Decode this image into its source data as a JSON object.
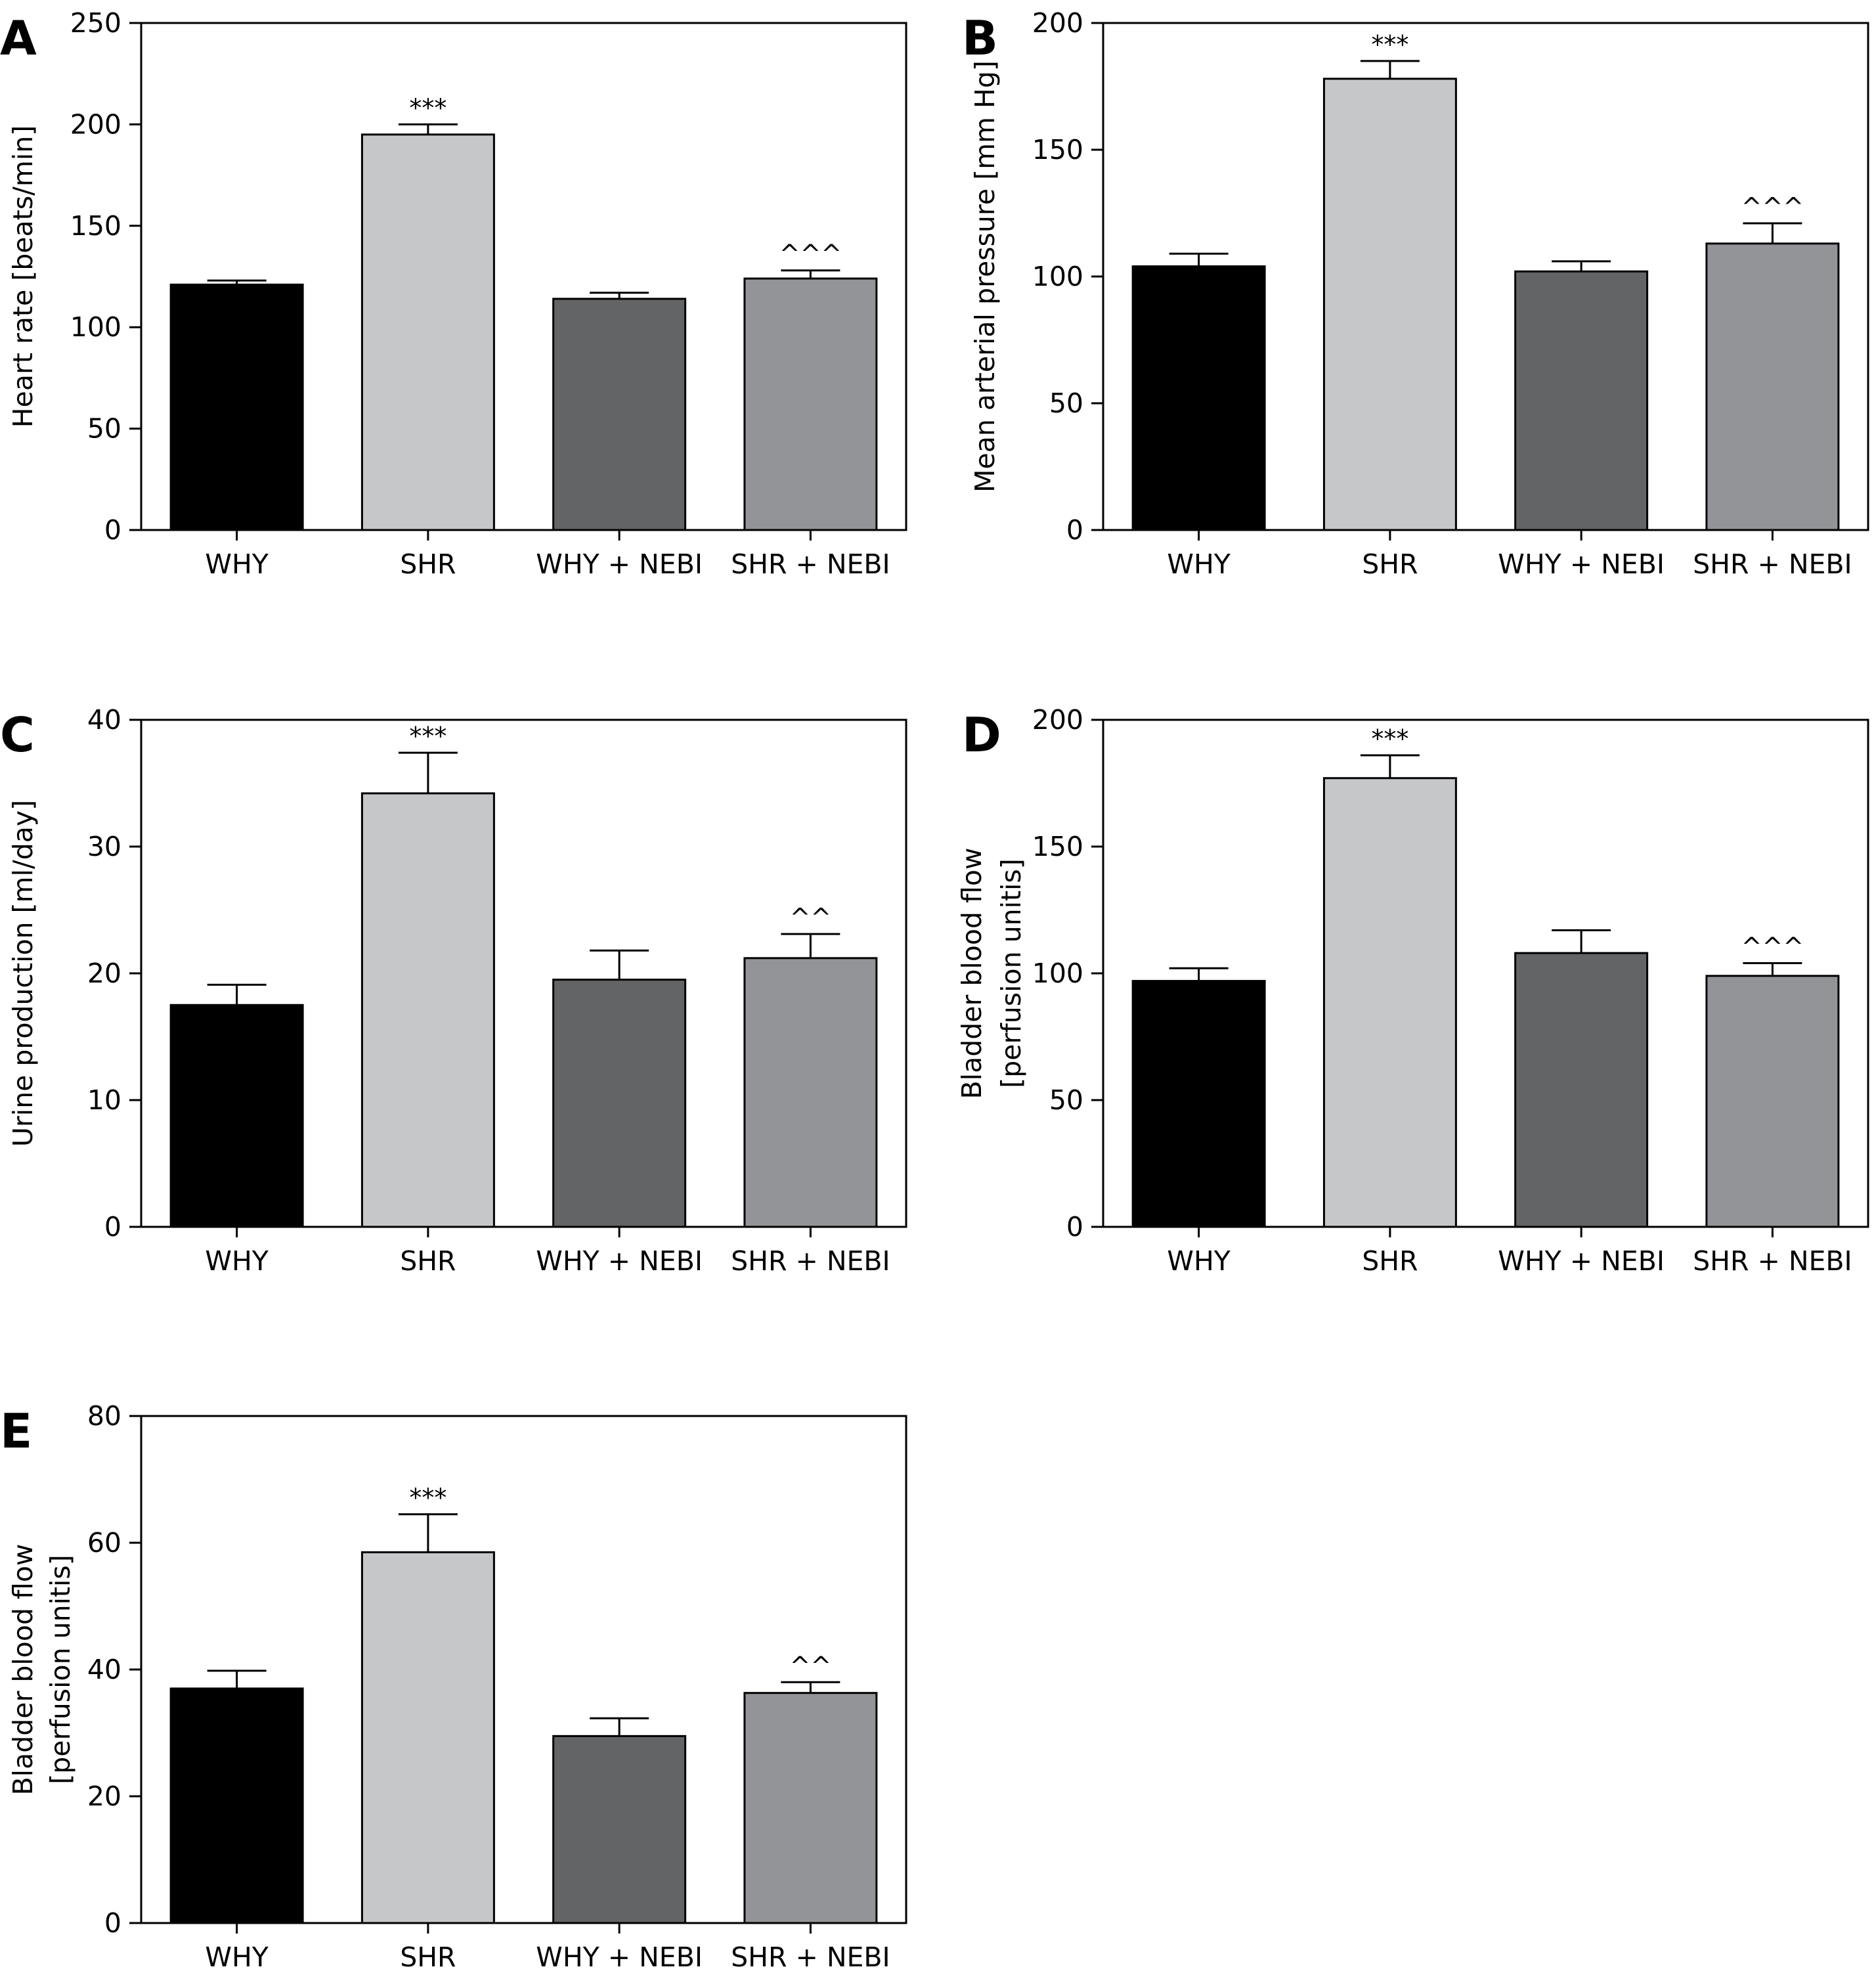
{
  "figure": {
    "categories": [
      "WHY",
      "SHR",
      "WHY + NEBI",
      "SHR + NEBI"
    ],
    "bar_colors": [
      "#000000",
      "#c6c7c9",
      "#636466",
      "#939497"
    ]
  },
  "chart_data": [
    {
      "panel": "A",
      "type": "bar",
      "categories": [
        "WHY",
        "SHR",
        "WHY + NEBI",
        "SHR + NEBI"
      ],
      "values": [
        121,
        195,
        114,
        124
      ],
      "errors": [
        2,
        5,
        3,
        4
      ],
      "annotations": [
        "",
        "***",
        "",
        "^^^"
      ],
      "ylabel": "Heart rate [beats/min]",
      "ylim": [
        0,
        250
      ],
      "yticks": [
        0,
        50,
        100,
        150,
        200,
        250
      ]
    },
    {
      "panel": "B",
      "type": "bar",
      "categories": [
        "WHY",
        "SHR",
        "WHY + NEBI",
        "SHR + NEBI"
      ],
      "values": [
        104,
        178,
        102,
        113
      ],
      "errors": [
        5,
        7,
        4,
        8
      ],
      "annotations": [
        "",
        "***",
        "",
        "^^^"
      ],
      "ylabel": "Mean arterial pressure [mm Hg]",
      "ylim": [
        0,
        200
      ],
      "yticks": [
        0,
        50,
        100,
        150,
        200
      ]
    },
    {
      "panel": "C",
      "type": "bar",
      "categories": [
        "WHY",
        "SHR",
        "WHY + NEBI",
        "SHR + NEBI"
      ],
      "values": [
        17.5,
        34.2,
        19.5,
        21.2
      ],
      "errors": [
        1.6,
        3.2,
        2.3,
        1.9
      ],
      "annotations": [
        "",
        "***",
        "",
        "^^"
      ],
      "ylabel": "Urine production [ml/day]",
      "ylim": [
        0,
        40
      ],
      "yticks": [
        0,
        10,
        20,
        30,
        40
      ]
    },
    {
      "panel": "D",
      "type": "bar",
      "categories": [
        "WHY",
        "SHR",
        "WHY + NEBI",
        "SHR + NEBI"
      ],
      "values": [
        97,
        177,
        108,
        99
      ],
      "errors": [
        5,
        9,
        9,
        5
      ],
      "annotations": [
        "",
        "***",
        "",
        "^^^"
      ],
      "ylabel": [
        "Bladder blood flow",
        "[perfusion unitis]"
      ],
      "ylim": [
        0,
        200
      ],
      "yticks": [
        0,
        50,
        100,
        150,
        200
      ]
    },
    {
      "panel": "E",
      "type": "bar",
      "categories": [
        "WHY",
        "SHR",
        "WHY + NEBI",
        "SHR + NEBI"
      ],
      "values": [
        37,
        58.5,
        29.5,
        36.3
      ],
      "errors": [
        2.8,
        6.0,
        2.8,
        1.7
      ],
      "annotations": [
        "",
        "***",
        "",
        "^^"
      ],
      "ylabel": [
        "Bladder blood flow",
        "[perfusion unitis]"
      ],
      "ylim": [
        0,
        80
      ],
      "yticks": [
        0,
        20,
        40,
        60,
        80
      ]
    }
  ]
}
